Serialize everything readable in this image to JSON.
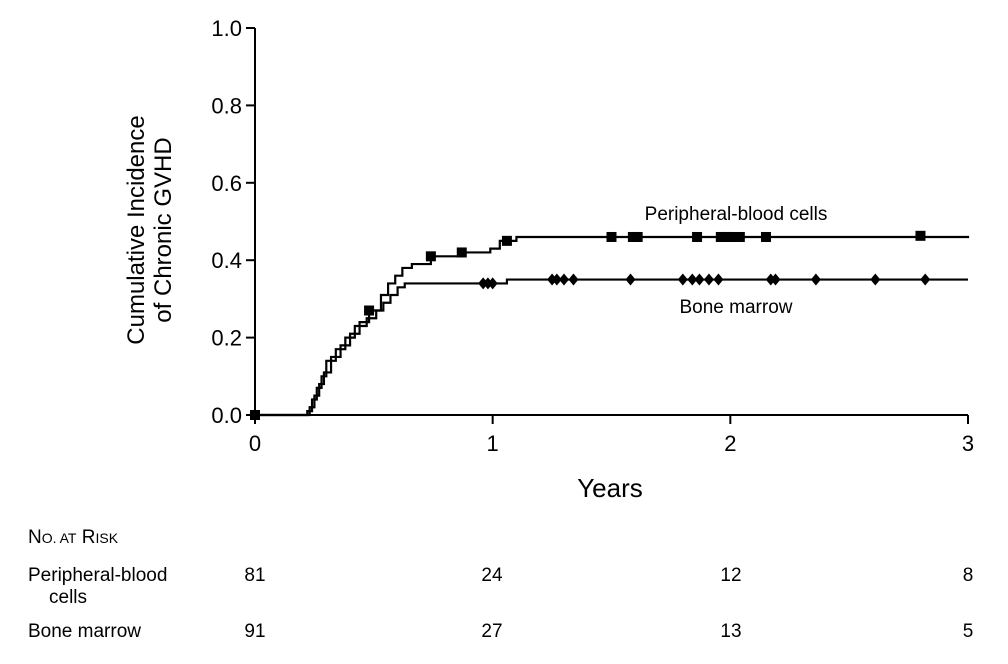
{
  "chart_data": {
    "type": "line",
    "ylabel": "Cumulative Incidence of Chronic GVHD",
    "ylabel_lines": [
      "Cumulative Incidence",
      "of Chronic GVHD"
    ],
    "xlabel": "Years",
    "xlim": [
      0,
      3
    ],
    "ylim": [
      0,
      1
    ],
    "xticks": [
      "0",
      "1",
      "2",
      "3"
    ],
    "yticks": [
      "0.0",
      "0.2",
      "0.4",
      "0.6",
      "0.8",
      "1.0"
    ],
    "grid": false,
    "series": [
      {
        "name": "Peripheral-blood cells",
        "color": "#000000",
        "marker": "square",
        "steps": [
          [
            0,
            0
          ],
          [
            0.22,
            0
          ],
          [
            0.23,
            0.02
          ],
          [
            0.25,
            0.05
          ],
          [
            0.27,
            0.08
          ],
          [
            0.29,
            0.11
          ],
          [
            0.32,
            0.15
          ],
          [
            0.36,
            0.18
          ],
          [
            0.4,
            0.21
          ],
          [
            0.44,
            0.24
          ],
          [
            0.48,
            0.27
          ],
          [
            0.53,
            0.31
          ],
          [
            0.56,
            0.34
          ],
          [
            0.59,
            0.36
          ],
          [
            0.62,
            0.38
          ],
          [
            0.66,
            0.39
          ],
          [
            0.74,
            0.41
          ],
          [
            0.87,
            0.42
          ],
          [
            0.99,
            0.43
          ],
          [
            1.03,
            0.45
          ],
          [
            1.1,
            0.46
          ],
          [
            1.6,
            0.46
          ],
          [
            3.0,
            0.463
          ]
        ],
        "censor_x": [
          1.06,
          1.5,
          1.59,
          1.61,
          1.86,
          1.96,
          1.98,
          1.99,
          2.01,
          2.04,
          2.15,
          2.8
        ],
        "censor_y": [
          0.45,
          0.46,
          0.46,
          0.46,
          0.46,
          0.46,
          0.46,
          0.46,
          0.46,
          0.46,
          0.46,
          0.463
        ]
      },
      {
        "name": "Bone marrow",
        "color": "#000000",
        "marker": "diamond",
        "steps": [
          [
            0,
            0
          ],
          [
            0.2,
            0
          ],
          [
            0.22,
            0.01
          ],
          [
            0.24,
            0.04
          ],
          [
            0.26,
            0.07
          ],
          [
            0.28,
            0.1
          ],
          [
            0.3,
            0.14
          ],
          [
            0.34,
            0.17
          ],
          [
            0.38,
            0.2
          ],
          [
            0.42,
            0.23
          ],
          [
            0.47,
            0.25
          ],
          [
            0.51,
            0.27
          ],
          [
            0.54,
            0.29
          ],
          [
            0.57,
            0.31
          ],
          [
            0.6,
            0.33
          ],
          [
            0.63,
            0.34
          ],
          [
            1.0,
            0.34
          ],
          [
            1.06,
            0.35
          ],
          [
            3.0,
            0.35
          ]
        ],
        "censor_x": [
          0.96,
          0.98,
          1.0,
          1.25,
          1.27,
          1.3,
          1.34,
          1.58,
          1.8,
          1.84,
          1.87,
          1.91,
          1.95,
          2.17,
          2.19,
          2.36,
          2.61,
          2.82
        ],
        "censor_y": [
          0.34,
          0.34,
          0.34,
          0.35,
          0.35,
          0.35,
          0.35,
          0.35,
          0.35,
          0.35,
          0.35,
          0.35,
          0.35,
          0.35,
          0.35,
          0.35,
          0.35,
          0.35
        ]
      }
    ],
    "annotations": [
      {
        "text": "Peripheral-blood cells",
        "series": 0
      },
      {
        "text": "Bone marrow",
        "series": 1
      }
    ]
  },
  "risk_table": {
    "title_N": "N",
    "title_O": "O.",
    "title_AT": " AT",
    "title_R": " R",
    "title_ISK": "ISK",
    "rows": [
      {
        "label_line1": "Peripheral-blood",
        "label_line2": "cells",
        "values": [
          "81",
          "24",
          "12",
          "8"
        ]
      },
      {
        "label_line1": "Bone marrow",
        "label_line2": "",
        "values": [
          "91",
          "27",
          "13",
          "5"
        ]
      }
    ]
  }
}
